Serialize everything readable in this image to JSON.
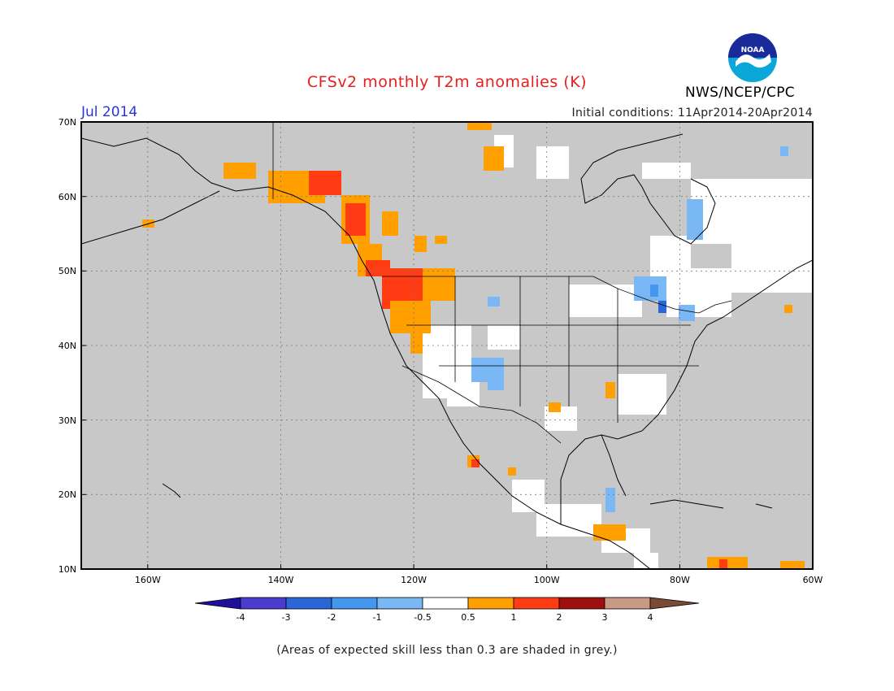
{
  "header": {
    "title": "CFSv2 monthly T2m anomalies (K)",
    "month": "Jul 2014",
    "initial_conditions": "Initial conditions: 11Apr2014-20Apr2014",
    "organization": "NWS/NCEP/CPC",
    "logo_text": "NOAA"
  },
  "map": {
    "region": "North America",
    "lat_labels": [
      "70N",
      "60N",
      "50N",
      "40N",
      "30N",
      "20N",
      "10N"
    ],
    "lon_labels": [
      "160W",
      "140W",
      "120W",
      "100W",
      "80W",
      "60W"
    ],
    "background_color": "#c8c8c8"
  },
  "colorbar": {
    "ticks": [
      "-4",
      "-3",
      "-2",
      "-1",
      "-0.5",
      "0.5",
      "1",
      "2",
      "3",
      "4"
    ],
    "colors": [
      "#1e0f9c",
      "#4a3ccf",
      "#2a66d6",
      "#4496ee",
      "#7ab8f5",
      "#ffffff",
      "#ff9f00",
      "#ff3c14",
      "#a00f0f",
      "#c89a86",
      "#7a4a36"
    ]
  },
  "footnote": "(Areas of expected skill less than 0.3 are shaded in grey.)"
}
